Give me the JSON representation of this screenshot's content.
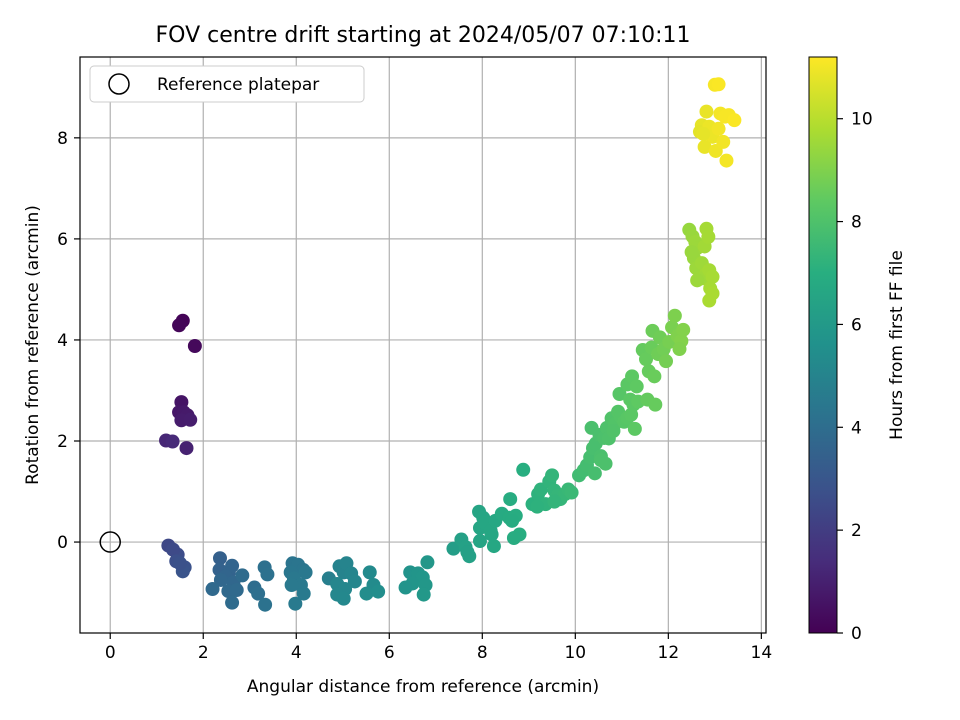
{
  "chart_data": {
    "type": "scatter",
    "title": "FOV centre drift starting at 2024/05/07 07:10:11",
    "xlabel": "Angular distance from reference (arcmin)",
    "ylabel": "Rotation from reference (arcmin)",
    "xlim": [
      -0.65,
      14.1
    ],
    "ylim": [
      -1.8,
      9.6
    ],
    "xticks": [
      0,
      2,
      4,
      6,
      8,
      10,
      12,
      14
    ],
    "yticks": [
      0,
      2,
      4,
      6,
      8
    ],
    "grid": true,
    "legend": {
      "placement": "top-left",
      "entries": [
        "Reference platepar"
      ]
    },
    "reference_point": {
      "x": 0,
      "y": 0
    },
    "colorbar": {
      "label": "Hours from first FF file",
      "range": [
        0,
        11.2
      ],
      "ticks": [
        0,
        2,
        4,
        6,
        8,
        10
      ],
      "colormap": "viridis"
    },
    "series": [
      {
        "points": [
          [
            1.56,
            4.38,
            0.1
          ],
          [
            1.48,
            4.29,
            0.15
          ],
          [
            1.82,
            3.88,
            0.25
          ],
          [
            1.53,
            2.77,
            0.6
          ],
          [
            1.48,
            2.57,
            0.7
          ],
          [
            1.58,
            2.57,
            0.75
          ],
          [
            1.66,
            2.51,
            0.8
          ],
          [
            1.53,
            2.41,
            0.85
          ],
          [
            1.72,
            2.42,
            0.9
          ],
          [
            1.64,
            1.86,
            1.05
          ],
          [
            1.2,
            2.01,
            1.2
          ],
          [
            1.34,
            1.99,
            1.3
          ],
          [
            1.25,
            -0.07,
            2.4
          ],
          [
            1.45,
            -0.25,
            2.6
          ],
          [
            1.35,
            -0.15,
            2.5
          ],
          [
            1.42,
            -0.38,
            2.7
          ],
          [
            1.6,
            -0.5,
            2.8
          ],
          [
            1.56,
            -0.58,
            2.9
          ],
          [
            1.5,
            -0.42,
            2.75
          ],
          [
            2.36,
            -0.32,
            3.4
          ],
          [
            2.35,
            -0.55,
            3.5
          ],
          [
            2.55,
            -0.6,
            3.55
          ],
          [
            2.62,
            -0.47,
            3.6
          ],
          [
            2.48,
            -0.68,
            3.65
          ],
          [
            2.65,
            -0.8,
            3.7
          ],
          [
            2.38,
            -0.75,
            3.7
          ],
          [
            2.2,
            -0.93,
            3.8
          ],
          [
            2.54,
            -0.97,
            3.8
          ],
          [
            2.72,
            -0.95,
            3.85
          ],
          [
            2.62,
            -1.2,
            3.9
          ],
          [
            2.84,
            -0.66,
            3.9
          ],
          [
            3.1,
            -0.9,
            4.0
          ],
          [
            3.18,
            -1.02,
            4.05
          ],
          [
            3.32,
            -0.5,
            4.1
          ],
          [
            3.38,
            -0.64,
            4.15
          ],
          [
            3.33,
            -1.24,
            4.2
          ],
          [
            3.92,
            -0.42,
            4.3
          ],
          [
            4.04,
            -0.45,
            4.35
          ],
          [
            4.15,
            -0.55,
            4.35
          ],
          [
            3.88,
            -0.6,
            4.4
          ],
          [
            4.2,
            -0.6,
            4.45
          ],
          [
            3.95,
            -0.72,
            4.45
          ],
          [
            4.1,
            -0.85,
            4.5
          ],
          [
            4.16,
            -1.02,
            4.55
          ],
          [
            3.98,
            -1.22,
            4.55
          ],
          [
            3.9,
            -0.85,
            4.5
          ],
          [
            4.7,
            -0.72,
            4.8
          ],
          [
            4.93,
            -0.48,
            4.9
          ],
          [
            5.02,
            -0.6,
            4.95
          ],
          [
            5.08,
            -0.42,
            5.0
          ],
          [
            5.18,
            -0.62,
            5.05
          ],
          [
            5.26,
            -0.78,
            5.1
          ],
          [
            4.88,
            -0.83,
            5.1
          ],
          [
            5.05,
            -0.93,
            5.15
          ],
          [
            4.88,
            -1.04,
            5.15
          ],
          [
            5.02,
            -1.12,
            5.2
          ],
          [
            5.58,
            -0.6,
            5.3
          ],
          [
            5.66,
            -0.85,
            5.35
          ],
          [
            5.51,
            -1.02,
            5.4
          ],
          [
            5.76,
            -0.98,
            5.45
          ],
          [
            6.45,
            -0.6,
            5.7
          ],
          [
            6.55,
            -0.68,
            5.75
          ],
          [
            6.62,
            -0.62,
            5.8
          ],
          [
            6.72,
            -0.7,
            5.85
          ],
          [
            6.82,
            -0.4,
            5.9
          ],
          [
            6.5,
            -0.82,
            5.8
          ],
          [
            6.35,
            -0.9,
            5.75
          ],
          [
            6.78,
            -0.85,
            5.9
          ],
          [
            6.74,
            -1.04,
            5.95
          ],
          [
            7.38,
            -0.13,
            6.2
          ],
          [
            7.55,
            0.05,
            6.3
          ],
          [
            7.64,
            -0.1,
            6.35
          ],
          [
            7.72,
            -0.28,
            6.35
          ],
          [
            7.68,
            -0.2,
            6.3
          ],
          [
            7.93,
            0.6,
            6.5
          ],
          [
            8.02,
            0.48,
            6.55
          ],
          [
            7.95,
            0.28,
            6.55
          ],
          [
            8.05,
            0.38,
            6.6
          ],
          [
            8.18,
            0.22,
            6.6
          ],
          [
            8.28,
            0.42,
            6.65
          ],
          [
            8.2,
            0.15,
            6.6
          ],
          [
            8.25,
            -0.08,
            6.65
          ],
          [
            7.95,
            0.02,
            6.5
          ],
          [
            8.42,
            0.56,
            6.8
          ],
          [
            8.58,
            0.48,
            6.85
          ],
          [
            8.72,
            0.52,
            6.9
          ],
          [
            8.64,
            0.42,
            6.85
          ],
          [
            8.6,
            0.85,
            6.9
          ],
          [
            8.88,
            1.43,
            7.0
          ],
          [
            8.8,
            0.15,
            6.95
          ],
          [
            8.68,
            0.08,
            6.9
          ],
          [
            9.08,
            0.75,
            7.1
          ],
          [
            9.2,
            0.95,
            7.15
          ],
          [
            9.26,
            1.04,
            7.2
          ],
          [
            9.36,
            0.75,
            7.2
          ],
          [
            9.44,
            1.2,
            7.25
          ],
          [
            9.5,
            1.32,
            7.3
          ],
          [
            9.55,
            1.02,
            7.3
          ],
          [
            9.62,
            0.92,
            7.35
          ],
          [
            9.68,
            0.85,
            7.35
          ],
          [
            9.78,
            0.95,
            7.4
          ],
          [
            9.18,
            0.7,
            7.15
          ],
          [
            9.85,
            1.04,
            7.45
          ],
          [
            9.92,
            0.98,
            7.5
          ],
          [
            9.55,
            0.8,
            7.3
          ],
          [
            10.08,
            1.32,
            7.65
          ],
          [
            10.18,
            1.42,
            7.7
          ],
          [
            10.25,
            1.52,
            7.75
          ],
          [
            10.32,
            1.68,
            7.8
          ],
          [
            10.38,
            1.86,
            7.85
          ],
          [
            10.44,
            1.95,
            7.85
          ],
          [
            10.35,
            2.26,
            7.9
          ],
          [
            10.52,
            2.12,
            7.9
          ],
          [
            10.55,
            1.7,
            7.9
          ],
          [
            10.62,
            2.06,
            7.95
          ],
          [
            10.68,
            2.26,
            8.0
          ],
          [
            10.72,
            2.05,
            8.0
          ],
          [
            10.55,
            1.62,
            7.95
          ],
          [
            10.65,
            1.55,
            7.95
          ],
          [
            10.42,
            1.36,
            7.8
          ],
          [
            10.78,
            2.45,
            8.05
          ],
          [
            10.85,
            2.34,
            8.1
          ],
          [
            10.92,
            2.58,
            8.15
          ],
          [
            10.95,
            2.93,
            8.2
          ],
          [
            10.82,
            2.2,
            8.05
          ],
          [
            10.98,
            2.47,
            8.15
          ],
          [
            11.05,
            2.38,
            8.2
          ],
          [
            11.12,
            2.46,
            8.25
          ],
          [
            11.18,
            2.82,
            8.3
          ],
          [
            11.2,
            2.52,
            8.3
          ],
          [
            11.25,
            2.72,
            8.3
          ],
          [
            11.28,
            2.24,
            8.35
          ],
          [
            11.12,
            3.12,
            8.3
          ],
          [
            11.22,
            3.28,
            8.35
          ],
          [
            11.32,
            3.08,
            8.4
          ],
          [
            11.45,
            3.8,
            8.5
          ],
          [
            11.52,
            3.62,
            8.55
          ],
          [
            11.58,
            3.38,
            8.55
          ],
          [
            11.64,
            3.85,
            8.6
          ],
          [
            11.7,
            3.28,
            8.6
          ],
          [
            11.66,
            4.18,
            8.65
          ],
          [
            11.78,
            3.72,
            8.7
          ],
          [
            11.82,
            4.05,
            8.7
          ],
          [
            11.9,
            3.82,
            8.75
          ],
          [
            11.95,
            3.58,
            8.8
          ],
          [
            12.02,
            3.96,
            8.85
          ],
          [
            12.08,
            4.25,
            8.9
          ],
          [
            12.14,
            4.48,
            8.95
          ],
          [
            12.2,
            4.08,
            9.0
          ],
          [
            12.28,
            3.98,
            9.05
          ],
          [
            12.32,
            4.2,
            9.05
          ],
          [
            12.24,
            3.82,
            9.0
          ],
          [
            11.35,
            2.78,
            8.4
          ],
          [
            11.55,
            2.82,
            8.5
          ],
          [
            11.72,
            2.72,
            8.55
          ],
          [
            12.45,
            6.18,
            9.4
          ],
          [
            12.52,
            6.05,
            9.45
          ],
          [
            12.58,
            5.94,
            9.5
          ],
          [
            12.62,
            5.82,
            9.5
          ],
          [
            12.55,
            5.62,
            9.45
          ],
          [
            12.6,
            5.42,
            9.5
          ],
          [
            12.72,
            5.52,
            9.55
          ],
          [
            12.78,
            5.85,
            9.6
          ],
          [
            12.82,
            6.2,
            9.65
          ],
          [
            12.86,
            6.04,
            9.65
          ],
          [
            12.82,
            5.32,
            9.6
          ],
          [
            12.75,
            5.22,
            9.55
          ],
          [
            12.88,
            5.38,
            9.65
          ],
          [
            12.95,
            5.25,
            9.7
          ],
          [
            12.9,
            5.02,
            9.7
          ],
          [
            12.95,
            4.92,
            9.75
          ],
          [
            12.88,
            4.78,
            9.75
          ],
          [
            12.62,
            5.18,
            9.5
          ],
          [
            12.5,
            5.74,
            9.45
          ],
          [
            12.72,
            8.25,
            10.8
          ],
          [
            12.68,
            8.12,
            10.75
          ],
          [
            12.82,
            8.52,
            10.85
          ],
          [
            12.88,
            8.22,
            10.9
          ],
          [
            12.95,
            8.02,
            10.9
          ],
          [
            12.78,
            7.82,
            10.85
          ],
          [
            13.02,
            7.74,
            10.95
          ],
          [
            13.08,
            8.18,
            11.0
          ],
          [
            13.18,
            7.92,
            11.0
          ],
          [
            13.25,
            7.55,
            11.05
          ],
          [
            13.12,
            8.48,
            11.05
          ],
          [
            13.22,
            8.42,
            11.1
          ],
          [
            13.3,
            8.45,
            11.1
          ],
          [
            13.42,
            8.35,
            11.15
          ],
          [
            13.0,
            9.05,
            11.1
          ],
          [
            13.08,
            9.06,
            11.15
          ],
          [
            12.75,
            8.08,
            10.8
          ]
        ]
      }
    ]
  }
}
